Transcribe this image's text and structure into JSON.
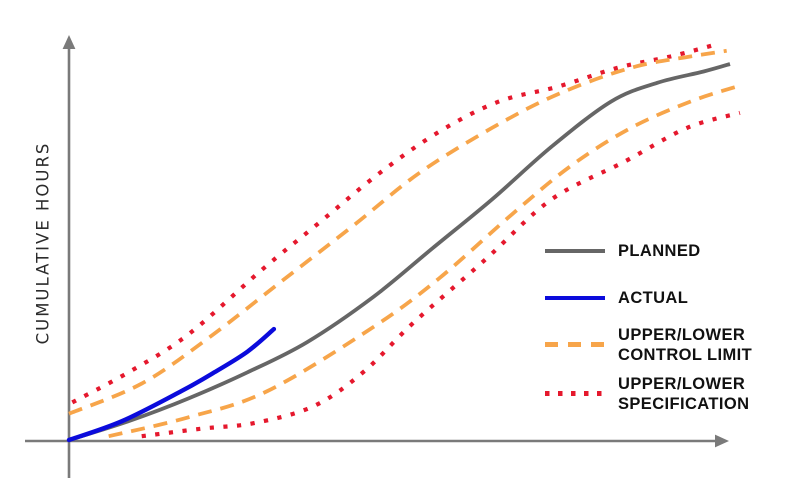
{
  "chart_data": {
    "type": "line",
    "title": "",
    "xlabel": "",
    "ylabel": "CUMULATIVE HOURS",
    "x_axis": {
      "range": [
        0,
        100
      ],
      "ticks": [],
      "gridlines": false,
      "arrow": true
    },
    "y_axis": {
      "range": [
        0,
        110
      ],
      "ticks": [],
      "gridlines": false,
      "arrow": true
    },
    "legend_position": "right",
    "series": [
      {
        "id": "planned",
        "name": "PLANNED",
        "style": "solid",
        "color": "#666666",
        "points": [
          [
            0,
            0
          ],
          [
            9,
            5
          ],
          [
            18,
            11
          ],
          [
            27,
            18
          ],
          [
            36,
            26
          ],
          [
            46,
            38
          ],
          [
            55,
            51
          ],
          [
            64,
            64
          ],
          [
            73,
            78
          ],
          [
            82,
            90
          ],
          [
            89,
            95
          ],
          [
            96,
            98
          ],
          [
            100,
            100
          ]
        ]
      },
      {
        "id": "actual",
        "name": "ACTUAL",
        "style": "solid",
        "color": "#0b0bdc",
        "points": [
          [
            0,
            0
          ],
          [
            8,
            5
          ],
          [
            17,
            13
          ],
          [
            22,
            18
          ],
          [
            27,
            23.5
          ],
          [
            31,
            29.5
          ]
        ]
      },
      {
        "id": "upper_control",
        "name": "UPPER CONTROL LIMIT",
        "style": "dashed",
        "color": "#f7a54a",
        "points": [
          [
            0,
            7
          ],
          [
            11,
            15
          ],
          [
            21,
            27
          ],
          [
            32,
            42
          ],
          [
            43,
            57
          ],
          [
            53,
            71
          ],
          [
            64,
            83
          ],
          [
            74,
            92
          ],
          [
            85,
            99
          ],
          [
            94,
            102
          ],
          [
            99.5,
            103.5
          ]
        ]
      },
      {
        "id": "lower_control",
        "name": "LOWER CONTROL LIMIT",
        "style": "dashed",
        "color": "#f7a54a",
        "points": [
          [
            6,
            1
          ],
          [
            18,
            6
          ],
          [
            30,
            13
          ],
          [
            46,
            30
          ],
          [
            56,
            43
          ],
          [
            67,
            60
          ],
          [
            76,
            73
          ],
          [
            85,
            83
          ],
          [
            94,
            90
          ],
          [
            101,
            94
          ]
        ]
      },
      {
        "id": "upper_spec",
        "name": "UPPER SPECIFICATION",
        "style": "dotted",
        "color": "#e5182d",
        "points": [
          [
            0.5,
            10
          ],
          [
            9,
            18
          ],
          [
            18,
            28
          ],
          [
            29,
            45
          ],
          [
            38,
            58
          ],
          [
            47,
            71
          ],
          [
            56,
            82
          ],
          [
            65,
            90
          ],
          [
            74,
            94
          ],
          [
            83,
            99
          ],
          [
            91,
            102
          ],
          [
            97.5,
            105
          ]
        ]
      },
      {
        "id": "lower_spec",
        "name": "LOWER SPECIFICATION",
        "style": "dotted",
        "color": "#e5182d",
        "points": [
          [
            11,
            1
          ],
          [
            20,
            3
          ],
          [
            28,
            4.5
          ],
          [
            37,
            9
          ],
          [
            44.5,
            18
          ],
          [
            52,
            31
          ],
          [
            63,
            48
          ],
          [
            73,
            64
          ],
          [
            84,
            74
          ],
          [
            93.5,
            83
          ],
          [
            101.5,
            87
          ]
        ]
      }
    ]
  },
  "legend": {
    "items": [
      {
        "id": "planned",
        "label": "PLANNED",
        "color": "#666666",
        "style": "solid"
      },
      {
        "id": "actual",
        "label": "ACTUAL",
        "color": "#0b0bdc",
        "style": "solid"
      },
      {
        "id": "control",
        "label_line1": "UPPER/LOWER",
        "label_line2": "CONTROL LIMIT",
        "color": "#f7a54a",
        "style": "dashed"
      },
      {
        "id": "spec",
        "label_line1": "UPPER/LOWER",
        "label_line2": "SPECIFICATION",
        "color": "#e5182d",
        "style": "dotted"
      }
    ]
  },
  "colors": {
    "axis": "#7a7a7a",
    "label": "#2b2b2b",
    "text": "#111111",
    "background": "#ffffff"
  }
}
